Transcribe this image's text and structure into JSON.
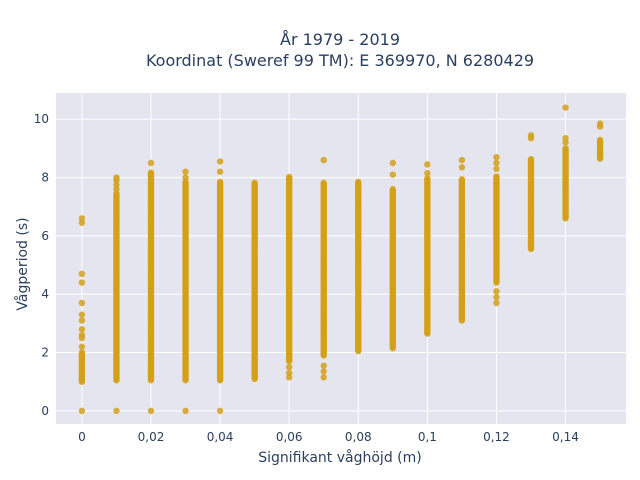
{
  "chart_data": {
    "type": "scatter",
    "title_line1": "År 1979 - 2019",
    "title_line2": "Koordinat (Sweref 99 TM): E 369970, N 6280429",
    "xlabel": "Signifikant våghöjd (m)",
    "ylabel": "Vågperiod (s)",
    "xlim": [
      -0.0075,
      0.1575
    ],
    "ylim": [
      -0.45,
      10.9
    ],
    "xticks": [
      0,
      0.02,
      0.04,
      0.06,
      0.08,
      0.1,
      0.12,
      0.14
    ],
    "xtick_labels": [
      "0",
      "0,02",
      "0,04",
      "0,06",
      "0,08",
      "0,1",
      "0,12",
      "0,14"
    ],
    "yticks": [
      0,
      2,
      4,
      6,
      8,
      10
    ],
    "ytick_labels": [
      "0",
      "2",
      "4",
      "6",
      "8",
      "10"
    ],
    "grid": true,
    "plot_background": "#e5e5ef",
    "grid_color": "#ffffff",
    "marker_color": "#d4a017",
    "columns": [
      {
        "x": 0,
        "range": [
          1.0,
          2.0
        ],
        "outliers": [
          6.6,
          6.45,
          4.7,
          4.4,
          3.7,
          3.3,
          3.1,
          2.8,
          2.6,
          2.5,
          2.2,
          0.0
        ]
      },
      {
        "x": 0.01,
        "range": [
          1.05,
          7.45
        ],
        "outliers": [
          7.6,
          7.75,
          7.9,
          8.0,
          0.0
        ]
      },
      {
        "x": 0.02,
        "range": [
          1.05,
          8.2
        ],
        "outliers": [
          8.5,
          0.0
        ]
      },
      {
        "x": 0.03,
        "range": [
          1.05,
          7.85
        ],
        "outliers": [
          8.0,
          8.2,
          0.0
        ]
      },
      {
        "x": 0.04,
        "range": [
          1.05,
          7.85
        ],
        "outliers": [
          8.2,
          8.55,
          0.0
        ]
      },
      {
        "x": 0.05,
        "range": [
          1.1,
          7.85
        ],
        "outliers": []
      },
      {
        "x": 0.06,
        "range": [
          1.7,
          8.05
        ],
        "outliers": [
          1.5,
          1.3,
          1.15
        ]
      },
      {
        "x": 0.07,
        "range": [
          1.9,
          7.85
        ],
        "outliers": [
          8.6,
          1.55,
          1.35,
          1.15
        ]
      },
      {
        "x": 0.08,
        "range": [
          2.05,
          7.85
        ],
        "outliers": []
      },
      {
        "x": 0.09,
        "range": [
          2.2,
          7.6
        ],
        "outliers": [
          8.1,
          8.5,
          2.15
        ]
      },
      {
        "x": 0.1,
        "range": [
          2.65,
          8.0
        ],
        "outliers": [
          8.15,
          8.45
        ]
      },
      {
        "x": 0.11,
        "range": [
          3.1,
          7.95
        ],
        "outliers": [
          8.35,
          8.6
        ]
      },
      {
        "x": 0.12,
        "range": [
          4.4,
          8.05
        ],
        "outliers": [
          8.3,
          8.5,
          8.7,
          4.1,
          3.9,
          3.7
        ]
      },
      {
        "x": 0.13,
        "range": [
          5.55,
          8.65
        ],
        "outliers": [
          9.35,
          9.45
        ]
      },
      {
        "x": 0.14,
        "range": [
          6.6,
          9.0
        ],
        "outliers": [
          9.2,
          9.35,
          10.4
        ]
      },
      {
        "x": 0.15,
        "range": [
          8.65,
          9.3
        ],
        "outliers": [
          9.75,
          9.85
        ]
      }
    ]
  }
}
